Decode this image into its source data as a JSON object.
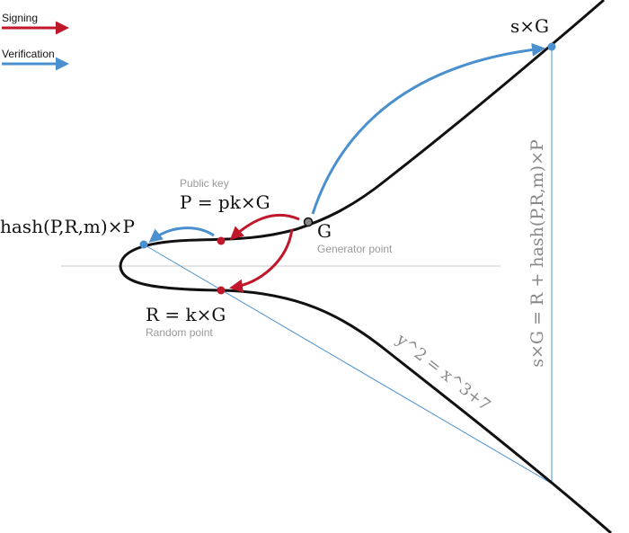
{
  "legend": {
    "signing": "Signing",
    "verification": "Verification"
  },
  "labels": {
    "sg": "s×G",
    "public_key": "Public key",
    "p": "P = pk×G",
    "g": "G",
    "generator": "Generator point",
    "hash": "hash(P,R,m)×P",
    "r": "R = k×G",
    "random": "Random point",
    "curve": "y^2 = x^3+7",
    "equation": "s×G = R + hash(P,R,m)×P"
  }
}
